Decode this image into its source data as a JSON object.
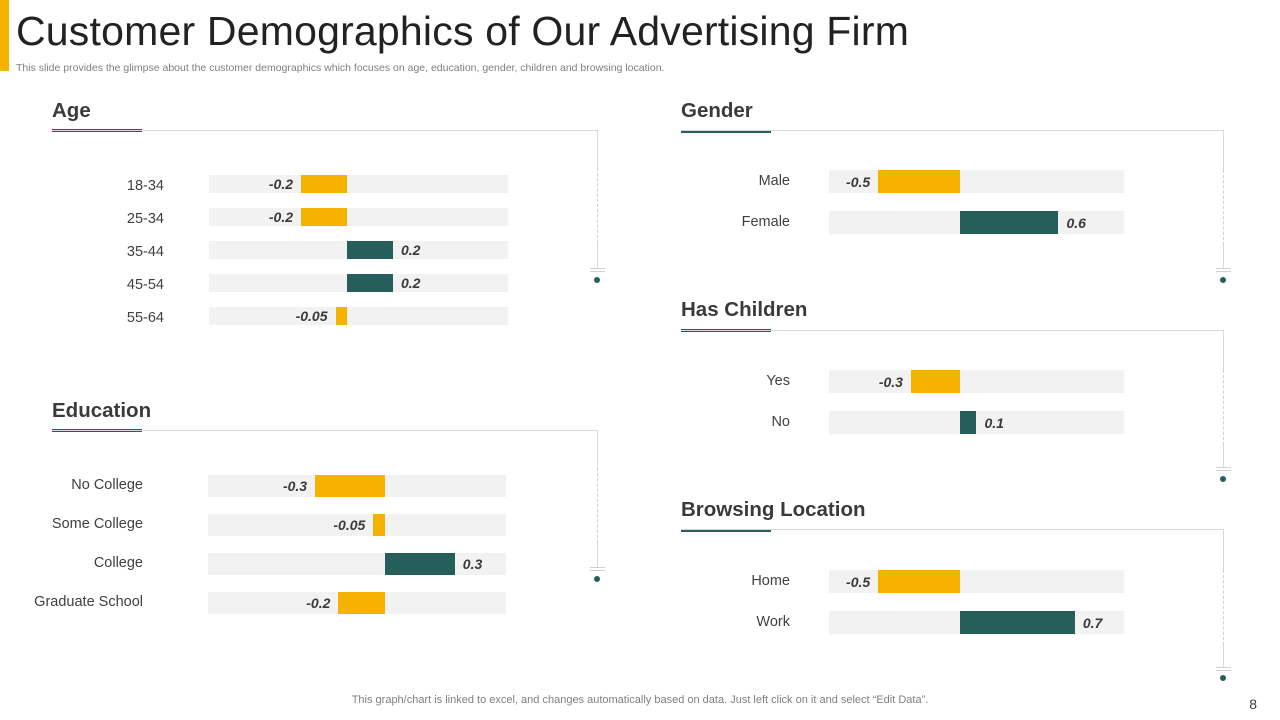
{
  "slide": {
    "title": "Customer Demographics of Our Advertising Firm",
    "subtitle": "This slide provides the glimpse about the customer demographics which focuses on age, education, gender, children and browsing location.",
    "footer_note": "This graph/chart is linked to excel,  and changes automatically based on data. Just left click on it and select “Edit Data”.",
    "page_number": "8"
  },
  "colors": {
    "accent": "#F5B300",
    "positive": "#265E5C",
    "negative": "#F5B300",
    "track": "#F2F2F2",
    "frame_dot": "#265E5C"
  },
  "chart_data": [
    {
      "type": "bar",
      "orientation": "horizontal-diverging",
      "title": "Age",
      "categories": [
        "18-34",
        "25-34",
        "35-44",
        "45-54",
        "55-64"
      ],
      "values": [
        -0.2,
        -0.2,
        0.2,
        0.2,
        -0.05
      ],
      "value_labels": [
        "-0.2",
        "-0.2",
        "0.2",
        "0.2",
        "-0.05"
      ],
      "xlim": [
        -0.6,
        0.7
      ]
    },
    {
      "type": "bar",
      "orientation": "horizontal-diverging",
      "title": "Education",
      "categories": [
        "No College",
        "Some College",
        "College",
        "Graduate School"
      ],
      "values": [
        -0.3,
        -0.05,
        0.3,
        -0.2
      ],
      "value_labels": [
        "-0.3",
        "-0.05",
        "0.3",
        "-0.2"
      ],
      "xlim": [
        -0.76,
        0.52
      ]
    },
    {
      "type": "bar",
      "orientation": "horizontal-diverging",
      "title": "Gender",
      "categories": [
        "Male",
        "Female"
      ],
      "values": [
        -0.5,
        0.6
      ],
      "value_labels": [
        "-0.5",
        "0.6"
      ],
      "xlim": [
        -0.8,
        1.0
      ]
    },
    {
      "type": "bar",
      "orientation": "horizontal-diverging",
      "title": "Has Children",
      "categories": [
        "Yes",
        "No"
      ],
      "values": [
        -0.3,
        0.1
      ],
      "value_labels": [
        "-0.3",
        "0.1"
      ],
      "xlim": [
        -0.8,
        1.0
      ]
    },
    {
      "type": "bar",
      "orientation": "horizontal-diverging",
      "title": "Browsing Location",
      "categories": [
        "Home",
        "Work"
      ],
      "values": [
        -0.5,
        0.7
      ],
      "value_labels": [
        "-0.5",
        "0.7"
      ],
      "xlim": [
        -0.8,
        1.0
      ]
    }
  ]
}
